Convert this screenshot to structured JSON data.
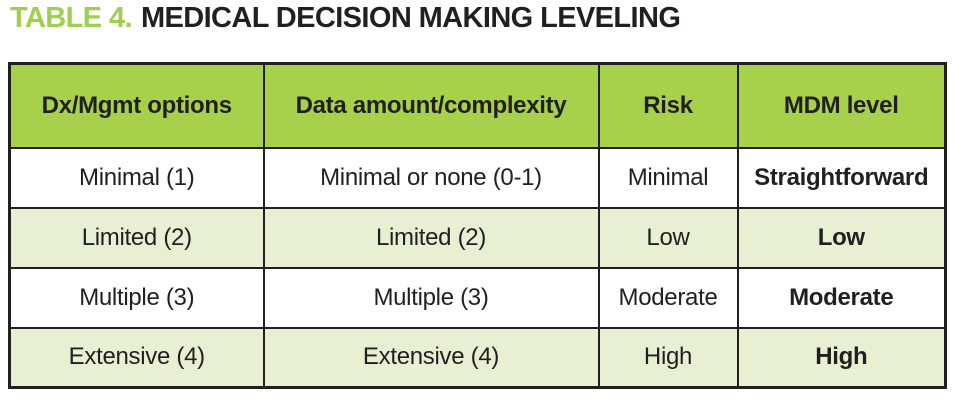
{
  "title": {
    "label": "TABLE 4.",
    "text": "MEDICAL DECISION MAKING LEVELING"
  },
  "colors": {
    "title_accent": "#9fcf50",
    "header_bg": "#a7d04b",
    "alt_row_bg": "#e9efd3",
    "border": "#231f20",
    "text": "#231f20"
  },
  "chart_data": {
    "type": "table",
    "title": "TABLE 4. MEDICAL DECISION MAKING LEVELING",
    "columns": [
      "Dx/Mgmt options",
      "Data amount/complexity",
      "Risk",
      "MDM level"
    ],
    "rows": [
      [
        "Minimal (1)",
        "Minimal or none (0-1)",
        "Minimal",
        "Straightforward"
      ],
      [
        "Limited (2)",
        "Limited (2)",
        "Low",
        "Low"
      ],
      [
        "Multiple (3)",
        "Multiple (3)",
        "Moderate",
        "Moderate"
      ],
      [
        "Extensive (4)",
        "Extensive (4)",
        "High",
        "High"
      ]
    ],
    "layout": {
      "header_background": "#a7d04b",
      "alternate_row_background": "#e9efd3",
      "last_column_bold": true
    }
  }
}
